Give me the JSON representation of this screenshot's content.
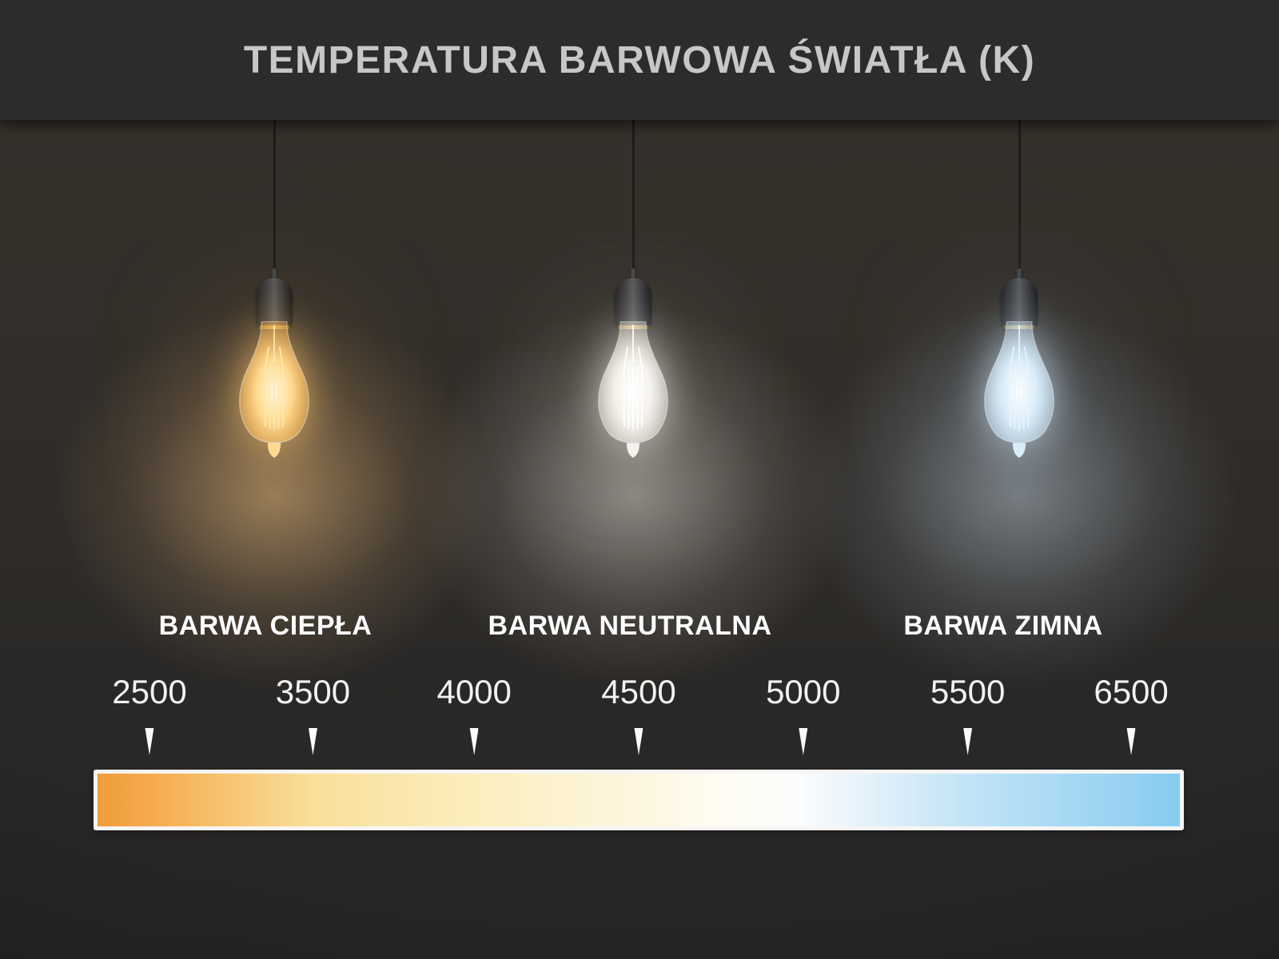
{
  "title": "TEMPERATURA BARWOWA ŚWIATŁA (K)",
  "bulbs": [
    {
      "id": "warm",
      "label": "BARWA CIEPŁA",
      "core": "#fff7e0",
      "mid": "#ffd98e",
      "edge": "rgba(246,170,70,0.32)",
      "filament": "#ffe9b0",
      "glow_inner": "rgba(255,200,110,0.85)",
      "glow_outer": "rgba(230,170,90,0.5)",
      "halo_inner": "rgba(214,172,116,0.62)",
      "halo_outer": "rgba(122,99,72,0.35)"
    },
    {
      "id": "neutral",
      "label": "BARWA NEUTRALNA",
      "core": "#ffffff",
      "mid": "#f4f2ec",
      "edge": "rgba(235,230,220,0.30)",
      "filament": "#ffffff",
      "glow_inner": "rgba(245,242,235,0.8)",
      "glow_outer": "rgba(220,216,210,0.45)",
      "halo_inner": "rgba(212,207,200,0.55)",
      "halo_outer": "rgba(118,113,108,0.32)"
    },
    {
      "id": "cold",
      "label": "BARWA ZIMNA",
      "core": "#ffffff",
      "mid": "#d9ecf8",
      "edge": "rgba(200,225,245,0.32)",
      "filament": "#eaf5ff",
      "glow_inner": "rgba(210,232,250,0.85)",
      "glow_outer": "rgba(170,200,225,0.5)",
      "halo_inner": "rgba(186,200,212,0.5)",
      "halo_outer": "rgba(104,112,120,0.3)"
    }
  ],
  "scale": {
    "unit": "K",
    "marks": [
      {
        "value": "2500",
        "pos": 0.048
      },
      {
        "value": "3500",
        "pos": 0.199
      },
      {
        "value": "4000",
        "pos": 0.348
      },
      {
        "value": "4500",
        "pos": 0.5
      },
      {
        "value": "5000",
        "pos": 0.652
      },
      {
        "value": "5500",
        "pos": 0.804
      },
      {
        "value": "6500",
        "pos": 0.955
      }
    ],
    "gradient": [
      {
        "color": "#f09c3c",
        "at": "0%"
      },
      {
        "color": "#f5ab4d",
        "at": "5%"
      },
      {
        "color": "#f9e09a",
        "at": "20%"
      },
      {
        "color": "#fbeebe",
        "at": "35%"
      },
      {
        "color": "#fdf6df",
        "at": "50%"
      },
      {
        "color": "#fffdf4",
        "at": "58%"
      },
      {
        "color": "#fafcfd",
        "at": "65%"
      },
      {
        "color": "#ddeffa",
        "at": "73%"
      },
      {
        "color": "#c3e4f6",
        "at": "80%"
      },
      {
        "color": "#97d2f2",
        "at": "95%"
      },
      {
        "color": "#86ccf0",
        "at": "100%"
      }
    ]
  },
  "chart_data": {
    "type": "scale",
    "title": "TEMPERATURA BARWOWA ŚWIATŁA (K)",
    "unit": "K",
    "categories": [
      "BARWA CIEPŁA",
      "BARWA NEUTRALNA",
      "BARWA ZIMNA"
    ],
    "tick_values": [
      2500,
      3500,
      4000,
      4500,
      5000,
      5500,
      6500
    ],
    "scale_range": [
      2500,
      6500
    ],
    "gradient_ends": [
      "#f09c3c",
      "#86ccf0"
    ],
    "legend_position": "none",
    "grid": false
  }
}
